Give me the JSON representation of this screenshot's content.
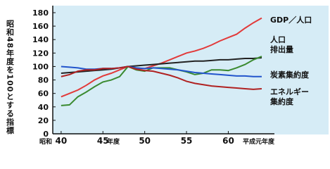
{
  "chart_data": {
    "type": "line",
    "y_axis_title": "昭和48年度を100とする指標",
    "annotations": [
      "昭和",
      "年度",
      "平成元年度"
    ],
    "x": [
      40,
      41,
      42,
      43,
      44,
      45,
      46,
      47,
      48,
      49,
      50,
      51,
      52,
      53,
      54,
      55,
      56,
      57,
      58,
      59,
      60,
      61,
      62,
      63,
      64
    ],
    "xlim": [
      39,
      72
    ],
    "xticks": [
      40,
      45,
      50,
      55,
      60
    ],
    "ylim": [
      0,
      180
    ],
    "yticks": [
      0,
      20,
      40,
      60,
      80,
      100,
      120,
      140,
      160,
      180
    ],
    "series": [
      {
        "name": "GDP／人口",
        "color": "#e23a3a",
        "values": [
          55,
          60,
          65,
          72,
          80,
          86,
          90,
          95,
          100,
          97,
          97,
          101,
          105,
          110,
          115,
          120,
          123,
          127,
          132,
          138,
          143,
          148,
          157,
          165,
          172
        ]
      },
      {
        "name": "人口",
        "color": "#222222",
        "values": [
          90,
          91,
          92,
          93,
          94,
          95,
          96,
          98,
          100,
          101,
          102,
          103,
          104,
          105,
          106,
          107,
          108,
          108,
          109,
          110,
          110,
          111,
          112,
          112,
          113
        ]
      },
      {
        "name": "排出量",
        "color": "#3a8a30",
        "values": [
          42,
          43,
          55,
          62,
          70,
          77,
          80,
          85,
          100,
          95,
          93,
          98,
          98,
          98,
          95,
          92,
          88,
          90,
          95,
          95,
          94,
          98,
          103,
          110,
          115
        ]
      },
      {
        "name": "炭素集約度",
        "color": "#2255cc",
        "values": [
          100,
          99,
          98,
          96,
          96,
          97,
          97,
          98,
          100,
          98,
          97,
          98,
          97,
          96,
          95,
          93,
          91,
          90,
          89,
          88,
          87,
          86,
          86,
          85,
          85
        ]
      },
      {
        "name": "エネルギー集約度",
        "color": "#b02222",
        "values": [
          85,
          88,
          93,
          95,
          95,
          97,
          97,
          98,
          100,
          96,
          94,
          93,
          90,
          87,
          83,
          78,
          75,
          73,
          71,
          70,
          69,
          68,
          67,
          66,
          67
        ]
      }
    ]
  }
}
